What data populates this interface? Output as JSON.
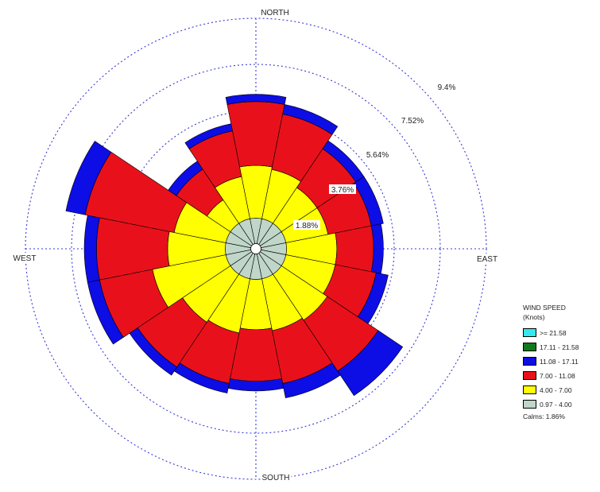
{
  "chart_data": {
    "type": "wind-rose",
    "units": "percent frequency",
    "ring_labels": [
      "1.88%",
      "3.76%",
      "5.64%",
      "7.52%",
      "9.4%"
    ],
    "ring_values": [
      1.88,
      3.76,
      5.64,
      7.52,
      9.4
    ],
    "direction_labels": {
      "north": "NORTH",
      "east": "EAST",
      "south": "SOUTH",
      "west": "WEST"
    },
    "directions": [
      "N",
      "NNE",
      "NE",
      "ENE",
      "E",
      "ESE",
      "SE",
      "SSE",
      "S",
      "SSW",
      "SW",
      "WSW",
      "W",
      "WNW",
      "NW",
      "NNW"
    ],
    "bins": [
      {
        "label": ">= 21.58",
        "color": "#35e8f0"
      },
      {
        "label": "17.11 - 21.58",
        "color": "#0e7a1a"
      },
      {
        "label": "11.08 - 17.11",
        "color": "#0d0de6"
      },
      {
        "label": "7.00 - 11.08",
        "color": "#e8111b"
      },
      {
        "label": "4.00 - 7.00",
        "color": "#ffff00"
      },
      {
        "label": "0.97 - 4.00",
        "color": "#bfd6c8"
      }
    ],
    "cumulative": {
      "N": [
        1.25,
        3.4,
        6.0,
        6.3
      ],
      "NNE": [
        1.25,
        3.3,
        5.6,
        6.0
      ],
      "NE": [
        1.25,
        3.0,
        4.9,
        5.3
      ],
      "ENE": [
        1.25,
        3.0,
        4.8,
        5.3
      ],
      "E": [
        1.25,
        3.3,
        4.8,
        5.2
      ],
      "ESE": [
        1.25,
        3.3,
        5.0,
        5.5
      ],
      "SE": [
        1.25,
        3.5,
        6.0,
        7.2
      ],
      "SSE": [
        1.25,
        3.4,
        5.6,
        6.2
      ],
      "S": [
        1.25,
        3.3,
        5.4,
        5.8
      ],
      "SSW": [
        1.25,
        3.5,
        5.6,
        6.0
      ],
      "SW": [
        1.25,
        3.6,
        5.8,
        6.2
      ],
      "WSW": [
        1.25,
        4.3,
        6.5,
        7.0
      ],
      "W": [
        1.25,
        3.6,
        6.5,
        7.0
      ],
      "WNW": [
        1.25,
        3.4,
        7.1,
        7.9
      ],
      "NW": [
        1.25,
        2.4,
        3.9,
        4.3
      ],
      "NNW": [
        1.25,
        3.0,
        4.9,
        5.2
      ]
    },
    "legend_position": "right"
  },
  "legend": {
    "title_line1": "WIND SPEED",
    "title_line2": "(Knots)",
    "calms": "Calms: 1.86%"
  }
}
